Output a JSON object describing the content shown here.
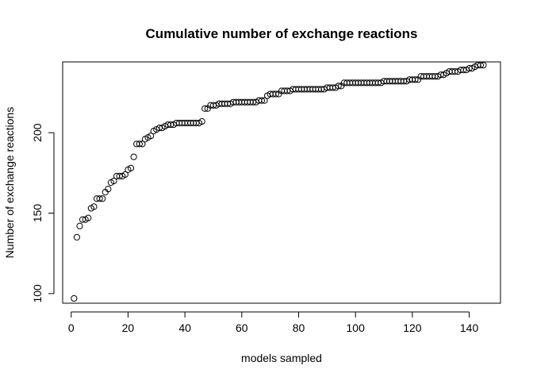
{
  "chart_data": {
    "type": "scatter",
    "title": "Cumulative number of exchange reactions",
    "xlabel": "models sampled",
    "ylabel": "Number of exchange reactions",
    "xlim": [
      -3,
      151
    ],
    "ylim": [
      94,
      244
    ],
    "x_ticks": [
      0,
      20,
      40,
      60,
      80,
      100,
      120,
      140
    ],
    "y_ticks": [
      100,
      150,
      200
    ],
    "grid": false,
    "legend": "none",
    "marker": "open-circle",
    "series": [
      {
        "x": [
          1,
          2,
          3,
          4,
          5,
          6,
          7,
          8,
          9,
          10,
          11,
          12,
          13,
          14,
          15,
          16,
          17,
          18,
          19,
          20,
          21,
          22,
          23,
          24,
          25,
          26,
          27,
          28,
          29,
          30,
          31,
          32,
          33,
          34,
          35,
          36,
          37,
          38,
          39,
          40,
          41,
          42,
          43,
          44,
          45,
          46,
          47,
          48,
          49,
          50,
          51,
          52,
          53,
          54,
          55,
          56,
          57,
          58,
          59,
          60,
          61,
          62,
          63,
          64,
          65,
          66,
          67,
          68,
          69,
          70,
          71,
          72,
          73,
          74,
          75,
          76,
          77,
          78,
          79,
          80,
          81,
          82,
          83,
          84,
          85,
          86,
          87,
          88,
          89,
          90,
          91,
          92,
          93,
          94,
          95,
          96,
          97,
          98,
          99,
          100,
          101,
          102,
          103,
          104,
          105,
          106,
          107,
          108,
          109,
          110,
          111,
          112,
          113,
          114,
          115,
          116,
          117,
          118,
          119,
          120,
          121,
          122,
          123,
          124,
          125,
          126,
          127,
          128,
          129,
          130,
          131,
          132,
          133,
          134,
          135,
          136,
          137,
          138,
          139,
          140,
          141,
          142,
          143,
          144,
          145
        ],
        "values": [
          97,
          135,
          142,
          146,
          146,
          147,
          153,
          154,
          159,
          159,
          159,
          163,
          165,
          169,
          170,
          173,
          173,
          173,
          174,
          177,
          178,
          185,
          193,
          193,
          193,
          196,
          197,
          198,
          201,
          202,
          203,
          203,
          204,
          205,
          205,
          205,
          206,
          206,
          206,
          206,
          206,
          206,
          206,
          206,
          206,
          207,
          215,
          215,
          217,
          217,
          217,
          218,
          218,
          218,
          218,
          218,
          219,
          219,
          219,
          219,
          219,
          219,
          219,
          219,
          219,
          220,
          220,
          220,
          223,
          224,
          224,
          224,
          224,
          226,
          226,
          226,
          226,
          227,
          227,
          227,
          227,
          227,
          227,
          227,
          227,
          227,
          227,
          227,
          227,
          228,
          228,
          228,
          228,
          229,
          229,
          231,
          231,
          231,
          231,
          231,
          231,
          231,
          231,
          231,
          231,
          231,
          231,
          231,
          231,
          232,
          232,
          232,
          232,
          232,
          232,
          232,
          232,
          232,
          233,
          233,
          233,
          233,
          235,
          235,
          235,
          235,
          235,
          235,
          235,
          236,
          236,
          237,
          238,
          238,
          238,
          238,
          239,
          239,
          239,
          240,
          240,
          241,
          242,
          242,
          242
        ]
      }
    ]
  }
}
